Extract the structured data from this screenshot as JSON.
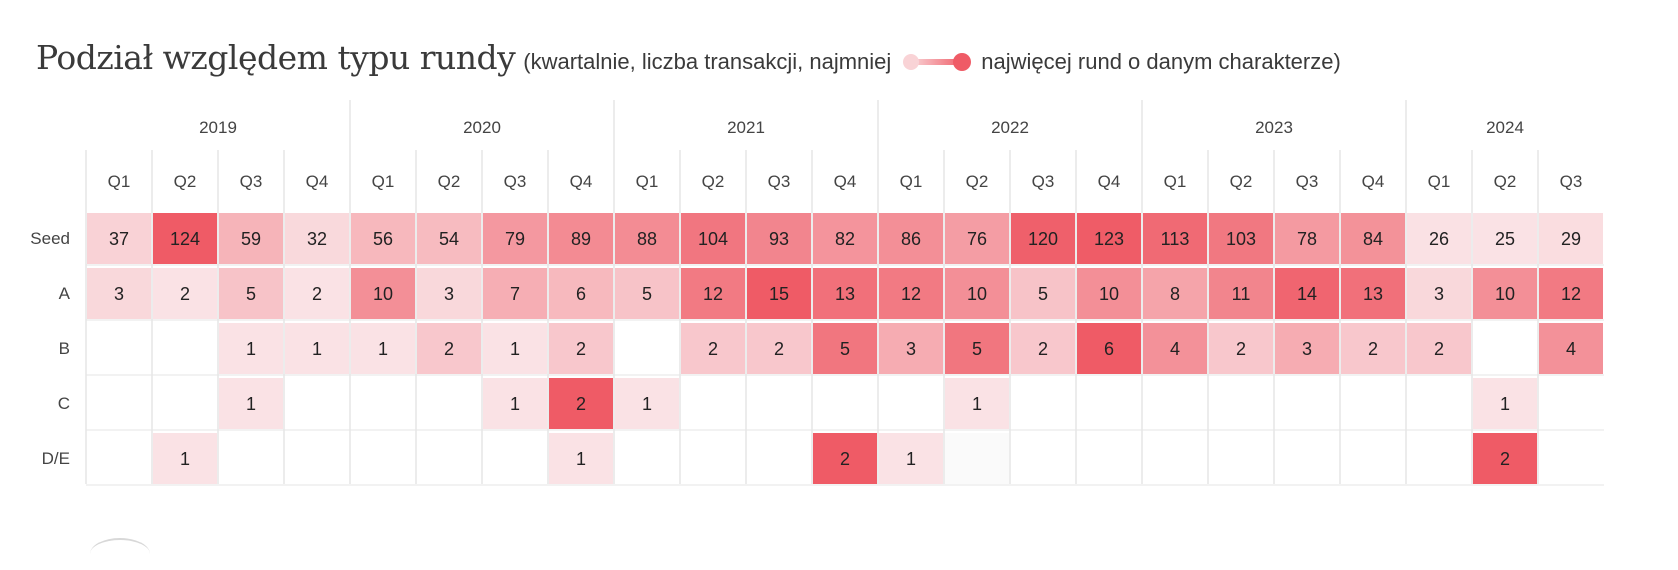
{
  "title": "Podział względem typu rundy",
  "subtitle_pre": "(kwartalnie, liczba transakcji, najmniej",
  "subtitle_post": "najwięcej rund o danym charakterze)",
  "colors": {
    "low": "#fbeef0",
    "high": "#ef5b66",
    "empty": "#ffffff",
    "near_zero": "#fafafa",
    "line": "#d9d9d9"
  },
  "chart_data": {
    "type": "heatmap",
    "years": [
      {
        "label": "2019",
        "span": 4
      },
      {
        "label": "2020",
        "span": 4
      },
      {
        "label": "2021",
        "span": 4
      },
      {
        "label": "2022",
        "span": 4
      },
      {
        "label": "2023",
        "span": 4
      },
      {
        "label": "2024",
        "span": 3
      }
    ],
    "quarters": [
      "Q1",
      "Q2",
      "Q3",
      "Q4",
      "Q1",
      "Q2",
      "Q3",
      "Q4",
      "Q1",
      "Q2",
      "Q3",
      "Q4",
      "Q1",
      "Q2",
      "Q3",
      "Q4",
      "Q1",
      "Q2",
      "Q3",
      "Q4",
      "Q1",
      "Q2",
      "Q3"
    ],
    "rows": [
      {
        "label": "Seed",
        "values": [
          37,
          124,
          59,
          32,
          56,
          54,
          79,
          89,
          88,
          104,
          93,
          82,
          86,
          76,
          120,
          123,
          113,
          103,
          78,
          84,
          26,
          25,
          29
        ]
      },
      {
        "label": "A",
        "values": [
          3,
          2,
          5,
          2,
          10,
          3,
          7,
          6,
          5,
          12,
          15,
          13,
          12,
          10,
          5,
          10,
          8,
          11,
          14,
          13,
          3,
          10,
          12
        ]
      },
      {
        "label": "B",
        "values": [
          null,
          null,
          1,
          1,
          1,
          2,
          1,
          2,
          null,
          2,
          2,
          5,
          3,
          5,
          2,
          6,
          4,
          2,
          3,
          2,
          2,
          null,
          4
        ]
      },
      {
        "label": "C",
        "values": [
          null,
          null,
          1,
          null,
          null,
          null,
          1,
          2,
          1,
          null,
          null,
          null,
          null,
          1,
          null,
          null,
          null,
          null,
          null,
          null,
          null,
          1,
          null
        ]
      },
      {
        "label": "D/E",
        "values": [
          null,
          1,
          null,
          null,
          null,
          null,
          null,
          1,
          null,
          null,
          null,
          2,
          1,
          0,
          null,
          null,
          null,
          null,
          null,
          null,
          null,
          2,
          null
        ]
      }
    ],
    "scale": "per-row, lightest = least rounds, darkest = most rounds"
  }
}
